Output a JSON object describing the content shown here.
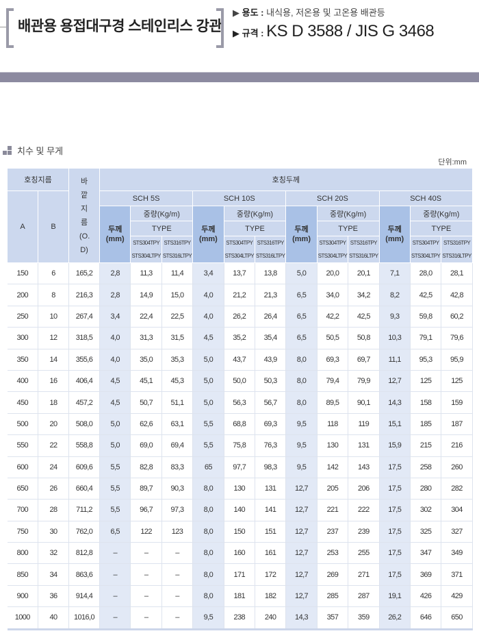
{
  "header": {
    "title": "배관용 용접대구경 스테인리스 강관",
    "use_label": "용도 :",
    "use_value": "내식용, 저온용 및 고온용 배관등",
    "standard_label": "규격 :",
    "standard_value": "KS D 3588 / JIS G 3468"
  },
  "section": {
    "title": "치수 및 무게",
    "unit": "단위:mm"
  },
  "colors": {
    "header_bg": "#ccd8ee",
    "thickness_header_bg": "#a9c1e6",
    "thickness_cell_bg": "#e2e9f6",
    "bar": "#8c8aa0"
  },
  "table": {
    "nominal_diameter": "호칭지름",
    "col_a": "A",
    "col_b": "B",
    "outer_diameter": "바깥지름(O.D)",
    "nominal_thickness": "호칭두께",
    "schedules": [
      "SCH 5S",
      "SCH 10S",
      "SCH 20S",
      "SCH 40S"
    ],
    "weight": "중량(Kg/m)",
    "thickness": "두께 (mm)",
    "type": "TYPE",
    "type_304": "STS304TPY STS304LTPY",
    "type_316": "STS316TPY STS316LTPY",
    "rows": [
      [
        "150",
        "6",
        "165,2",
        "2,8",
        "11,3",
        "11,4",
        "3,4",
        "13,7",
        "13,8",
        "5,0",
        "20,0",
        "20,1",
        "7,1",
        "28,0",
        "28,1"
      ],
      [
        "200",
        "8",
        "216,3",
        "2,8",
        "14,9",
        "15,0",
        "4,0",
        "21,2",
        "21,3",
        "6,5",
        "34,0",
        "34,2",
        "8,2",
        "42,5",
        "42,8"
      ],
      [
        "250",
        "10",
        "267,4",
        "3,4",
        "22,4",
        "22,5",
        "4,0",
        "26,2",
        "26,4",
        "6,5",
        "42,2",
        "42,5",
        "9,3",
        "59,8",
        "60,2"
      ],
      [
        "300",
        "12",
        "318,5",
        "4,0",
        "31,3",
        "31,5",
        "4,5",
        "35,2",
        "35,4",
        "6,5",
        "50,5",
        "50,8",
        "10,3",
        "79,1",
        "79,6"
      ],
      [
        "350",
        "14",
        "355,6",
        "4,0",
        "35,0",
        "35,3",
        "5,0",
        "43,7",
        "43,9",
        "8,0",
        "69,3",
        "69,7",
        "11,1",
        "95,3",
        "95,9"
      ],
      [
        "400",
        "16",
        "406,4",
        "4,5",
        "45,1",
        "45,3",
        "5,0",
        "50,0",
        "50,3",
        "8,0",
        "79,4",
        "79,9",
        "12,7",
        "125",
        "125"
      ],
      [
        "450",
        "18",
        "457,2",
        "4,5",
        "50,7",
        "51,1",
        "5,0",
        "56,3",
        "56,7",
        "8,0",
        "89,5",
        "90,1",
        "14,3",
        "158",
        "159"
      ],
      [
        "500",
        "20",
        "508,0",
        "5,0",
        "62,6",
        "63,1",
        "5,5",
        "68,8",
        "69,3",
        "9,5",
        "118",
        "119",
        "15,1",
        "185",
        "187"
      ],
      [
        "550",
        "22",
        "558,8",
        "5,0",
        "69,0",
        "69,4",
        "5,5",
        "75,8",
        "76,3",
        "9,5",
        "130",
        "131",
        "15,9",
        "215",
        "216"
      ],
      [
        "600",
        "24",
        "609,6",
        "5,5",
        "82,8",
        "83,3",
        "65",
        "97,7",
        "98,3",
        "9,5",
        "142",
        "143",
        "17,5",
        "258",
        "260"
      ],
      [
        "650",
        "26",
        "660,4",
        "5,5",
        "89,7",
        "90,3",
        "8,0",
        "130",
        "131",
        "12,7",
        "205",
        "206",
        "17,5",
        "280",
        "282"
      ],
      [
        "700",
        "28",
        "711,2",
        "5,5",
        "96,7",
        "97,3",
        "8,0",
        "140",
        "141",
        "12,7",
        "221",
        "222",
        "17,5",
        "302",
        "304"
      ],
      [
        "750",
        "30",
        "762,0",
        "6,5",
        "122",
        "123",
        "8,0",
        "150",
        "151",
        "12,7",
        "237",
        "239",
        "17,5",
        "325",
        "327"
      ],
      [
        "800",
        "32",
        "812,8",
        "–",
        "–",
        "–",
        "8,0",
        "160",
        "161",
        "12,7",
        "253",
        "255",
        "17,5",
        "347",
        "349"
      ],
      [
        "850",
        "34",
        "863,6",
        "–",
        "–",
        "–",
        "8,0",
        "171",
        "172",
        "12,7",
        "269",
        "271",
        "17,5",
        "369",
        "371"
      ],
      [
        "900",
        "36",
        "914,4",
        "–",
        "–",
        "–",
        "8,0",
        "181",
        "182",
        "12,7",
        "285",
        "287",
        "19,1",
        "426",
        "429"
      ],
      [
        "1000",
        "40",
        "1016,0",
        "–",
        "–",
        "–",
        "9,5",
        "238",
        "240",
        "14,3",
        "357",
        "359",
        "26,2",
        "646",
        "650"
      ]
    ]
  }
}
